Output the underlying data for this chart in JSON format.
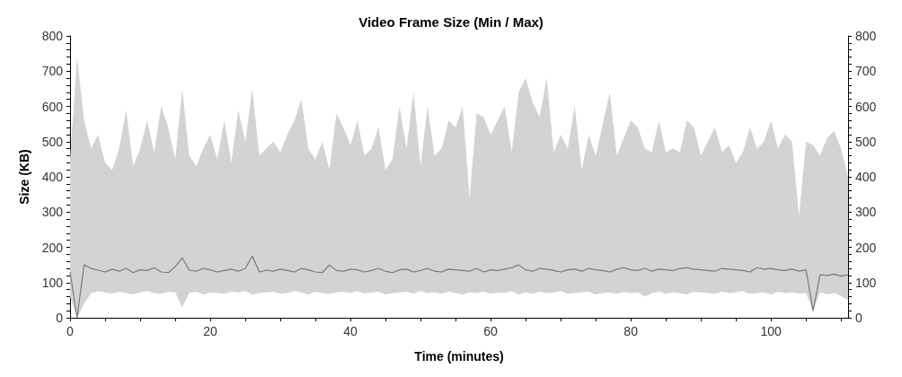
{
  "chart_data": {
    "type": "line",
    "title": "Video Frame Size (Min / Max)",
    "xlabel": "Time (minutes)",
    "ylabel": "Size (KB)",
    "x": [
      0,
      1,
      2,
      3,
      4,
      5,
      6,
      7,
      8,
      9,
      10,
      11,
      12,
      13,
      14,
      15,
      16,
      17,
      18,
      19,
      20,
      21,
      22,
      23,
      24,
      25,
      26,
      27,
      28,
      29,
      30,
      31,
      32,
      33,
      34,
      35,
      36,
      37,
      38,
      39,
      40,
      41,
      42,
      43,
      44,
      45,
      46,
      47,
      48,
      49,
      50,
      51,
      52,
      53,
      54,
      55,
      56,
      57,
      58,
      59,
      60,
      61,
      62,
      63,
      64,
      65,
      66,
      67,
      68,
      69,
      70,
      71,
      72,
      73,
      74,
      75,
      76,
      77,
      78,
      79,
      80,
      81,
      82,
      83,
      84,
      85,
      86,
      87,
      88,
      89,
      90,
      91,
      92,
      93,
      94,
      95,
      96,
      97,
      98,
      99,
      100,
      101,
      102,
      103,
      104,
      105,
      106,
      107,
      108,
      109,
      110,
      111
    ],
    "series": [
      {
        "color": "#7a7a7a",
        "values": [
          130,
          0,
          150,
          140,
          135,
          130,
          138,
          132,
          140,
          128,
          136,
          134,
          142,
          130,
          128,
          145,
          170,
          135,
          132,
          140,
          136,
          130,
          134,
          138,
          132,
          140,
          175,
          130,
          135,
          132,
          138,
          134,
          130,
          140,
          136,
          130,
          128,
          150,
          134,
          132,
          138,
          136,
          130,
          134,
          140,
          132,
          128,
          136,
          138,
          130,
          134,
          140,
          132,
          130,
          138,
          136,
          134,
          132,
          140,
          130,
          136,
          134,
          138,
          142,
          150,
          136,
          132,
          140,
          138,
          134,
          130,
          136,
          138,
          132,
          140,
          136,
          134,
          130,
          138,
          142,
          136,
          134,
          140,
          132,
          138,
          136,
          134,
          140,
          142,
          138,
          136,
          134,
          132,
          140,
          138,
          136,
          134,
          130,
          142,
          138,
          140,
          136,
          134,
          138,
          132,
          136,
          20,
          122,
          120,
          124,
          118,
          122
        ],
        "lower": [
          60,
          0,
          40,
          70,
          75,
          72,
          68,
          74,
          70,
          66,
          72,
          76,
          70,
          68,
          74,
          72,
          30,
          70,
          74,
          66,
          72,
          70,
          68,
          74,
          72,
          76,
          66,
          70,
          72,
          74,
          68,
          70,
          76,
          72,
          66,
          74,
          70,
          68,
          72,
          74,
          70,
          76,
          68,
          72,
          74,
          66,
          70,
          72,
          74,
          68,
          76,
          70,
          72,
          68,
          74,
          70,
          66,
          72,
          70,
          74,
          68,
          72,
          70,
          76,
          66,
          72,
          68,
          74,
          70,
          72,
          76,
          68,
          70,
          72,
          74,
          66,
          70,
          72,
          68,
          74,
          70,
          72,
          60,
          70,
          74,
          68,
          72,
          70,
          66,
          74,
          72,
          70,
          68,
          74,
          70,
          72,
          76,
          68,
          70,
          72,
          66,
          74,
          70,
          72,
          68,
          70,
          20,
          72,
          66,
          70,
          62,
          50
        ],
        "upper": [
          450,
          740,
          560,
          480,
          520,
          440,
          420,
          480,
          590,
          430,
          480,
          560,
          470,
          600,
          540,
          450,
          650,
          460,
          430,
          480,
          520,
          450,
          560,
          440,
          590,
          500,
          650,
          460,
          480,
          500,
          470,
          520,
          560,
          620,
          480,
          450,
          500,
          420,
          580,
          540,
          490,
          560,
          460,
          480,
          540,
          420,
          450,
          600,
          480,
          640,
          430,
          600,
          460,
          480,
          560,
          540,
          600,
          340,
          580,
          570,
          520,
          560,
          600,
          470,
          640,
          680,
          610,
          570,
          680,
          470,
          520,
          480,
          600,
          420,
          520,
          460,
          550,
          640,
          460,
          510,
          560,
          540,
          480,
          470,
          560,
          470,
          480,
          470,
          560,
          540,
          460,
          500,
          540,
          470,
          490,
          440,
          470,
          540,
          480,
          500,
          560,
          480,
          520,
          500,
          290,
          500,
          490,
          460,
          510,
          530,
          480,
          400
        ]
      }
    ],
    "xlim": [
      0,
      111
    ],
    "xticks": [
      0,
      {
        "value": 5,
        "label": null
      },
      {
        "value": 10,
        "label": null
      },
      {
        "value": 15,
        "label": null
      },
      20,
      {
        "value": 25,
        "label": null
      },
      {
        "value": 30,
        "label": null
      },
      {
        "value": 35,
        "label": null
      },
      40,
      {
        "value": 45,
        "label": null
      },
      {
        "value": 50,
        "label": null
      },
      {
        "value": 55,
        "label": null
      },
      60,
      {
        "value": 65,
        "label": null
      },
      {
        "value": 70,
        "label": null
      },
      {
        "value": 75,
        "label": null
      },
      80,
      {
        "value": 85,
        "label": null
      },
      {
        "value": 90,
        "label": null
      },
      {
        "value": 95,
        "label": null
      },
      100,
      {
        "value": 105,
        "label": null
      },
      {
        "value": 110,
        "label": null
      }
    ],
    "ylim": [
      0,
      800
    ],
    "yticks": [
      0,
      {
        "value": 20,
        "label": null
      },
      {
        "value": 40,
        "label": null
      },
      {
        "value": 60,
        "label": null
      },
      {
        "value": 80,
        "label": null
      },
      100,
      {
        "value": 120,
        "label": null
      },
      {
        "value": 140,
        "label": null
      },
      {
        "value": 160,
        "label": null
      },
      {
        "value": 180,
        "label": null
      },
      200,
      {
        "value": 220,
        "label": null
      },
      {
        "value": 240,
        "label": null
      },
      {
        "value": 260,
        "label": null
      },
      {
        "value": 280,
        "label": null
      },
      300,
      {
        "value": 320,
        "label": null
      },
      {
        "value": 340,
        "label": null
      },
      {
        "value": 360,
        "label": null
      },
      {
        "value": 380,
        "label": null
      },
      400,
      {
        "value": 420,
        "label": null
      },
      {
        "value": 440,
        "label": null
      },
      {
        "value": 460,
        "label": null
      },
      {
        "value": 480,
        "label": null
      },
      500,
      {
        "value": 520,
        "label": null
      },
      {
        "value": 540,
        "label": null
      },
      {
        "value": 560,
        "label": null
      },
      {
        "value": 580,
        "label": null
      },
      600,
      {
        "value": 620,
        "label": null
      },
      {
        "value": 640,
        "label": null
      },
      {
        "value": 660,
        "label": null
      },
      {
        "value": 680,
        "label": null
      },
      700,
      {
        "value": 720,
        "label": null
      },
      {
        "value": 740,
        "label": null
      },
      {
        "value": 760,
        "label": null
      },
      {
        "value": 780,
        "label": null
      },
      800
    ],
    "y2lim": [
      0,
      800
    ],
    "y2ticks": [
      0,
      {
        "value": 20,
        "label": null
      },
      {
        "value": 40,
        "label": null
      },
      {
        "value": 60,
        "label": null
      },
      {
        "value": 80,
        "label": null
      },
      100,
      {
        "value": 120,
        "label": null
      },
      {
        "value": 140,
        "label": null
      },
      {
        "value": 160,
        "label": null
      },
      {
        "value": 180,
        "label": null
      },
      200,
      {
        "value": 220,
        "label": null
      },
      {
        "value": 240,
        "label": null
      },
      {
        "value": 260,
        "label": null
      },
      {
        "value": 280,
        "label": null
      },
      300,
      {
        "value": 320,
        "label": null
      },
      {
        "value": 340,
        "label": null
      },
      {
        "value": 360,
        "label": null
      },
      {
        "value": 380,
        "label": null
      },
      400,
      {
        "value": 420,
        "label": null
      },
      {
        "value": 440,
        "label": null
      },
      {
        "value": 460,
        "label": null
      },
      {
        "value": 480,
        "label": null
      },
      500,
      {
        "value": 520,
        "label": null
      },
      {
        "value": 540,
        "label": null
      },
      {
        "value": 560,
        "label": null
      },
      {
        "value": 580,
        "label": null
      },
      600,
      {
        "value": 620,
        "label": null
      },
      {
        "value": 640,
        "label": null
      },
      {
        "value": 660,
        "label": null
      },
      {
        "value": 680,
        "label": null
      },
      700,
      {
        "value": 720,
        "label": null
      },
      {
        "value": 740,
        "label": null
      },
      {
        "value": 760,
        "label": null
      },
      {
        "value": 780,
        "label": null
      },
      800
    ],
    "grid": false,
    "marker": "none",
    "line_style": "solid"
  }
}
